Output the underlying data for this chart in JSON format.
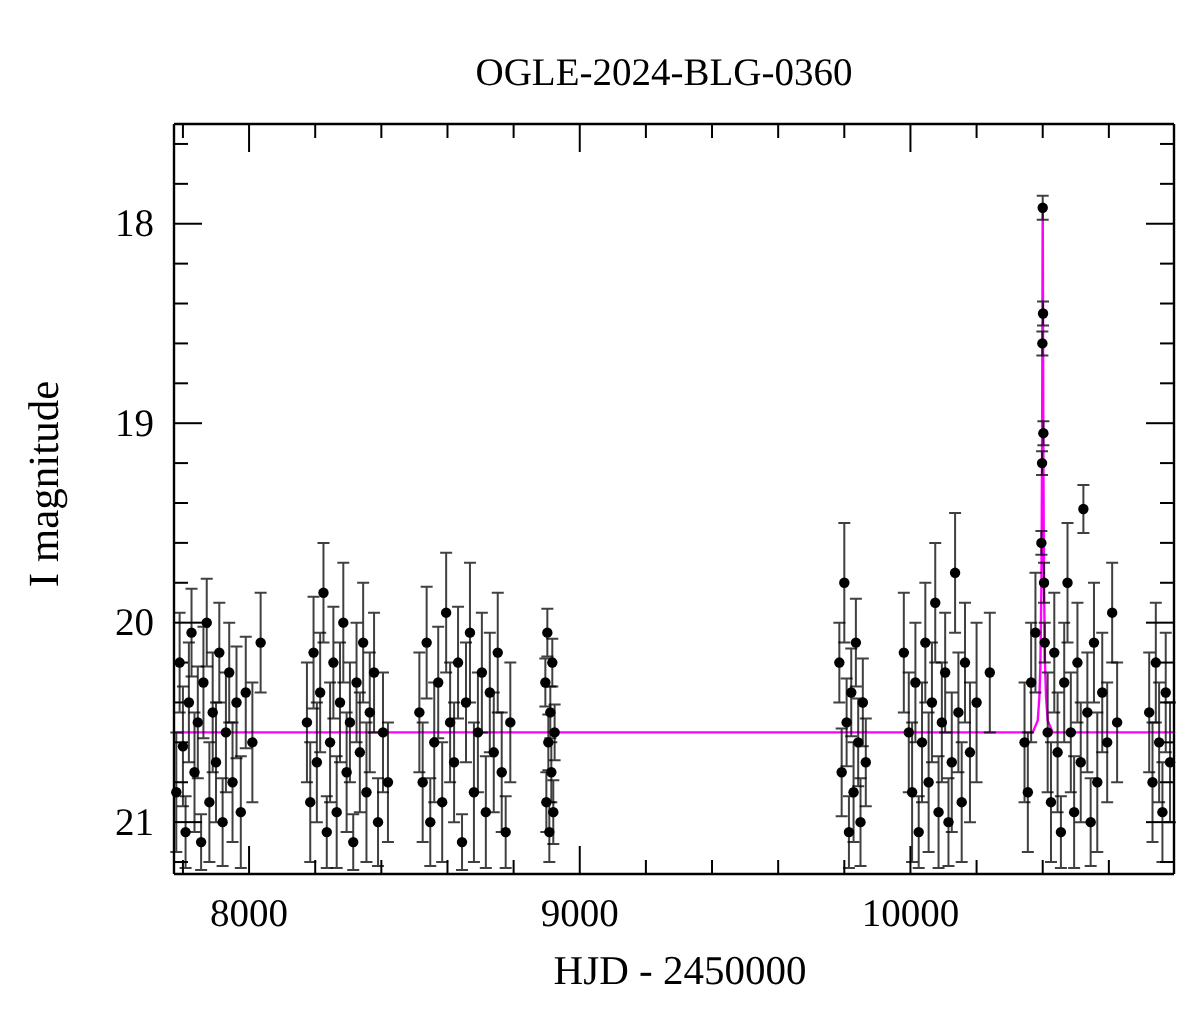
{
  "chart_data": {
    "type": "scatter",
    "title": "OGLE-2024-BLG-0360",
    "xlabel": "HJD - 2450000",
    "ylabel": "I magnitude",
    "xlim": [
      7773,
      10797
    ],
    "ylim": [
      21.26,
      17.5
    ],
    "xticks": [
      {
        "value": 7800,
        "label": null
      },
      8000,
      {
        "value": 8200,
        "label": null
      },
      {
        "value": 8400,
        "label": null
      },
      {
        "value": 8600,
        "label": null
      },
      {
        "value": 8800,
        "label": null
      },
      9000,
      {
        "value": 9200,
        "label": null
      },
      {
        "value": 9400,
        "label": null
      },
      {
        "value": 9600,
        "label": null
      },
      {
        "value": 9800,
        "label": null
      },
      10000,
      {
        "value": 10200,
        "label": null
      },
      {
        "value": 10400,
        "label": null
      },
      {
        "value": 10600,
        "label": null
      }
    ],
    "yticks": [
      {
        "value": 17.6,
        "label": null
      },
      {
        "value": 17.8,
        "label": null
      },
      18,
      {
        "value": 18.2,
        "label": null
      },
      {
        "value": 18.4,
        "label": null
      },
      {
        "value": 18.6,
        "label": null
      },
      {
        "value": 18.8,
        "label": null
      },
      19,
      {
        "value": 19.2,
        "label": null
      },
      {
        "value": 19.4,
        "label": null
      },
      {
        "value": 19.6,
        "label": null
      },
      {
        "value": 19.8,
        "label": null
      },
      20,
      {
        "value": 20.2,
        "label": null
      },
      {
        "value": 20.4,
        "label": null
      },
      {
        "value": 20.6,
        "label": null
      },
      {
        "value": 20.8,
        "label": null
      },
      21,
      {
        "value": 21.2,
        "label": null
      }
    ],
    "series": [
      {
        "color": "#000000",
        "marker": "circle",
        "x": [
          7780,
          7790,
          7800,
          7808,
          7818,
          7826,
          7835,
          7845,
          7855,
          7862,
          7872,
          7880,
          7890,
          7900,
          7910,
          7920,
          7930,
          7940,
          7950,
          7962,
          7975,
          7990,
          8010,
          8035,
          8175,
          8185,
          8195,
          8205,
          8215,
          8225,
          8235,
          8245,
          8255,
          8265,
          8275,
          8285,
          8295,
          8305,
          8315,
          8325,
          8335,
          8345,
          8355,
          8365,
          8378,
          8390,
          8405,
          8420,
          8515,
          8525,
          8537,
          8548,
          8560,
          8572,
          8584,
          8596,
          8608,
          8620,
          8632,
          8644,
          8656,
          8668,
          8680,
          8692,
          8704,
          8716,
          8728,
          8740,
          8752,
          8764,
          8776,
          8790,
          8896,
          8899,
          8902,
          8905,
          8908,
          8911,
          8914,
          8917,
          8920,
          8924,
          9785,
          9792,
          9800,
          9807,
          9814,
          9821,
          9828,
          9835,
          9842,
          9849,
          9856,
          9865,
          9980,
          9995,
          10005,
          10015,
          10025,
          10035,
          10045,
          10055,
          10065,
          10075,
          10085,
          10095,
          10105,
          10115,
          10125,
          10135,
          10145,
          10155,
          10165,
          10180,
          10200,
          10240,
          10345,
          10355,
          10365,
          10378,
          10415,
          10425,
          10435,
          10445,
          10455,
          10465,
          10475,
          10485,
          10495,
          10505,
          10515,
          10523,
          10535,
          10545,
          10555,
          10565,
          10580,
          10595,
          10610,
          10625,
          10396,
          10398,
          10399,
          10400,
          10401,
          10402,
          10404,
          10406,
          10722,
          10732,
          10742,
          10752,
          10762,
          10772,
          10785
        ],
        "values": [
          20.85,
          20.2,
          20.62,
          21.05,
          20.4,
          20.05,
          20.75,
          20.5,
          21.1,
          20.3,
          20.0,
          20.9,
          20.45,
          20.7,
          20.15,
          21.0,
          20.55,
          20.25,
          20.8,
          20.4,
          20.95,
          20.35,
          20.6,
          20.1,
          20.5,
          20.9,
          20.15,
          20.7,
          20.35,
          19.85,
          21.05,
          20.6,
          20.2,
          20.95,
          20.4,
          20.0,
          20.75,
          20.5,
          21.1,
          20.3,
          20.65,
          20.1,
          20.85,
          20.45,
          20.25,
          21.0,
          20.55,
          20.8,
          20.45,
          20.8,
          20.1,
          21.0,
          20.6,
          20.3,
          20.9,
          19.95,
          20.5,
          20.7,
          20.2,
          21.1,
          20.4,
          20.05,
          20.85,
          20.55,
          20.25,
          20.95,
          20.35,
          20.65,
          20.15,
          20.75,
          21.05,
          20.5,
          20.3,
          20.9,
          20.05,
          20.6,
          21.05,
          20.45,
          20.75,
          20.2,
          20.95,
          20.55,
          20.2,
          20.75,
          19.8,
          20.5,
          21.05,
          20.35,
          20.85,
          20.1,
          20.6,
          21.0,
          20.4,
          20.7,
          20.15,
          20.55,
          20.85,
          20.3,
          21.05,
          20.6,
          20.1,
          20.8,
          20.4,
          19.9,
          20.95,
          20.5,
          20.25,
          21.0,
          20.7,
          19.75,
          20.45,
          20.9,
          20.2,
          20.65,
          20.4,
          20.25,
          20.6,
          20.85,
          20.3,
          20.05,
          20.55,
          20.9,
          20.15,
          20.65,
          21.05,
          20.3,
          19.8,
          20.55,
          20.95,
          20.2,
          20.7,
          19.43,
          20.45,
          21.0,
          20.1,
          20.8,
          20.35,
          20.6,
          19.95,
          20.5,
          19.6,
          19.2,
          18.6,
          17.92,
          18.45,
          19.05,
          19.8,
          20.1,
          20.45,
          20.8,
          20.2,
          20.6,
          20.95,
          20.35,
          20.7
        ],
        "errors": [
          0.3,
          0.25,
          0.3,
          0.18,
          0.3,
          0.22,
          0.3,
          0.28,
          0.14,
          0.28,
          0.22,
          0.3,
          0.3,
          0.3,
          0.25,
          0.22,
          0.3,
          0.25,
          0.3,
          0.28,
          0.28,
          0.28,
          0.3,
          0.25,
          0.3,
          0.3,
          0.28,
          0.3,
          0.3,
          0.25,
          0.18,
          0.3,
          0.28,
          0.28,
          0.3,
          0.3,
          0.3,
          0.3,
          0.14,
          0.3,
          0.3,
          0.3,
          0.35,
          0.3,
          0.3,
          0.22,
          0.3,
          0.3,
          0.3,
          0.3,
          0.28,
          0.22,
          0.3,
          0.28,
          0.3,
          0.3,
          0.3,
          0.3,
          0.28,
          0.14,
          0.3,
          0.35,
          0.35,
          0.3,
          0.3,
          0.28,
          0.3,
          0.3,
          0.3,
          0.3,
          0.18,
          0.3,
          0.12,
          0.15,
          0.12,
          0.14,
          0.15,
          0.13,
          0.15,
          0.12,
          0.16,
          0.14,
          0.2,
          0.22,
          0.3,
          0.22,
          0.18,
          0.22,
          0.25,
          0.22,
          0.22,
          0.22,
          0.22,
          0.22,
          0.3,
          0.3,
          0.35,
          0.3,
          0.18,
          0.3,
          0.3,
          0.35,
          0.3,
          0.3,
          0.28,
          0.3,
          0.3,
          0.22,
          0.35,
          0.3,
          0.3,
          0.3,
          0.3,
          0.35,
          0.4,
          0.3,
          0.3,
          0.3,
          0.3,
          0.3,
          0.3,
          0.3,
          0.3,
          0.3,
          0.18,
          0.3,
          0.3,
          0.3,
          0.28,
          0.3,
          0.3,
          0.12,
          0.3,
          0.22,
          0.3,
          0.35,
          0.3,
          0.3,
          0.25,
          0.3,
          0.06,
          0.06,
          0.06,
          0.06,
          0.06,
          0.06,
          0.1,
          0.1,
          0.3,
          0.3,
          0.3,
          0.3,
          0.25,
          0.3,
          0.3
        ]
      },
      {
        "type": "line",
        "color": "#ff00ff",
        "x": [
          7773,
          10370,
          10385,
          10390,
          10393,
          10395,
          10396,
          10397,
          10398,
          10399,
          10399.5,
          10400,
          10400.5,
          10401,
          10402,
          10403,
          10404,
          10405,
          10407,
          10410,
          10415,
          10430,
          10797
        ],
        "values": [
          20.55,
          20.55,
          20.49,
          20.37,
          20.21,
          19.95,
          19.82,
          19.52,
          19.17,
          18.56,
          18.16,
          17.92,
          18.16,
          18.56,
          19.17,
          19.52,
          19.82,
          19.95,
          20.21,
          20.37,
          20.49,
          20.55,
          20.55
        ]
      }
    ]
  }
}
